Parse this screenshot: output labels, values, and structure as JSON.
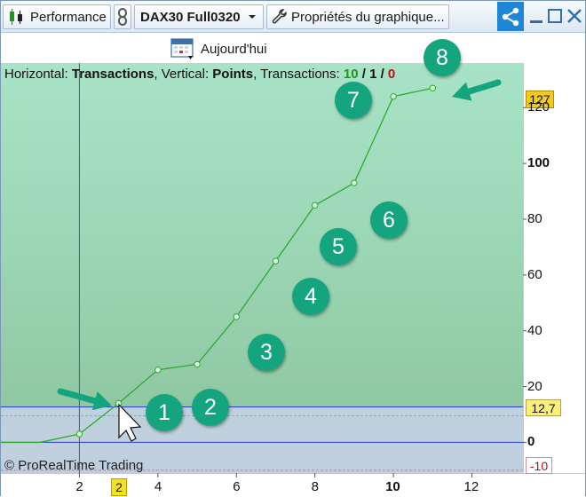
{
  "toolbar": {
    "performance_label": "Performance",
    "instrument_label": "DAX30 Full0320",
    "properties_label": "Propriétés du graphique..."
  },
  "subbar": {
    "today_label": "Aujourd'hui"
  },
  "legend": {
    "horizontal_prefix": "Horizontal:",
    "horizontal_value": "Transactions",
    "vertical_prefix": ", Vertical:",
    "vertical_value": "Points",
    "transactions_prefix": ", Transactions:",
    "wins": "10",
    "sep1": " / ",
    "neutral": "1",
    "sep2": " / ",
    "losses": "0"
  },
  "copyright": "© ProRealTime Trading",
  "badges": [
    "1",
    "2",
    "3",
    "4",
    "5",
    "6",
    "7",
    "8"
  ],
  "tags": {
    "last_value": "127",
    "cursor_value": "12,7",
    "min_value": "-10",
    "cursor_x": "2"
  },
  "colors": {
    "accent": "#15a57e",
    "line": "#2eaa2e",
    "share": "#1f86d6"
  },
  "chart_data": {
    "type": "line",
    "xlabel": "",
    "ylabel": "",
    "x_ticks": [
      "2",
      "4",
      "6",
      "8",
      "10",
      "12"
    ],
    "y_ticks": [
      "0",
      "20",
      "40",
      "60",
      "80",
      "100",
      "120"
    ],
    "xlim": [
      0,
      13.3
    ],
    "ylim": [
      -11,
      136
    ],
    "series": [
      {
        "x": [
          0,
          1,
          2,
          3,
          4,
          5,
          6,
          7,
          8,
          9,
          10,
          11
        ],
        "values": [
          0,
          0,
          3,
          14,
          26,
          28,
          45,
          65,
          85,
          93,
          124,
          127
        ]
      }
    ],
    "grid": false
  }
}
